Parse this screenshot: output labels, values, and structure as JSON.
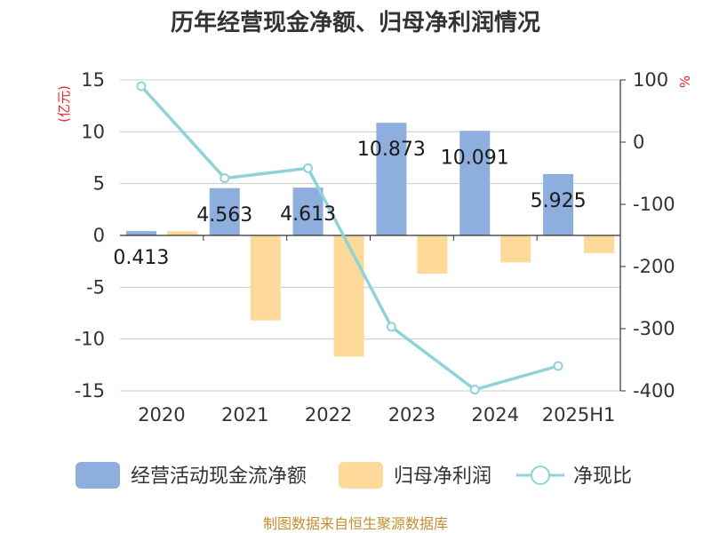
{
  "chart_data": {
    "type": "bar",
    "title": "历年经营现金净额、归母净利润情况",
    "categories": [
      "2020",
      "2021",
      "2022",
      "2023",
      "2024",
      "2025H1"
    ],
    "left_axis": {
      "unit_label": "(亿元)",
      "ylim": [
        -15,
        15
      ],
      "ticks": [
        "15",
        "10",
        "5",
        "0",
        "-5",
        "-10",
        "-15"
      ]
    },
    "right_axis": {
      "unit_label": "%",
      "ylim": [
        -400,
        100
      ],
      "ticks": [
        "100",
        "0",
        "-100",
        "-200",
        "-300",
        "-400"
      ]
    },
    "series": [
      {
        "name": "经营活动现金流净额",
        "type": "bar",
        "axis": "left",
        "color": "#8eaedd",
        "values": [
          0.413,
          4.563,
          4.613,
          10.873,
          10.091,
          5.925
        ],
        "labels": [
          "0.413",
          "4.563",
          "4.613",
          "10.873",
          "10.091",
          "5.925"
        ]
      },
      {
        "name": "归母净利润",
        "type": "bar",
        "axis": "left",
        "color": "#fdd99a",
        "values": [
          0.4,
          -8.2,
          -11.7,
          -3.7,
          -2.6,
          -1.7
        ]
      },
      {
        "name": "净现比",
        "type": "line",
        "axis": "right",
        "color": "#8fd3d8",
        "values": [
          90,
          -58,
          -42,
          -297,
          -398,
          -360
        ]
      }
    ],
    "grid": true,
    "legend": "bottom"
  },
  "source": "制图数据来自恒生聚源数据库"
}
